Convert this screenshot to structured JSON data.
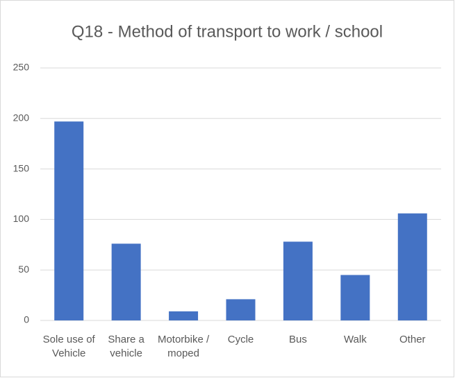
{
  "chart_data": {
    "type": "bar",
    "title": "Q18 - Method of transport to work / school",
    "categories": [
      "Sole use of Vehicle",
      "Share a vehicle",
      "Motorbike / moped",
      "Cycle",
      "Bus",
      "Walk",
      "Other"
    ],
    "values": [
      197,
      76,
      9,
      21,
      78,
      45,
      106
    ],
    "color": "#4472c4",
    "ylim": [
      0,
      250
    ],
    "yticks": [
      0,
      50,
      100,
      150,
      200,
      250
    ],
    "grid": true
  }
}
